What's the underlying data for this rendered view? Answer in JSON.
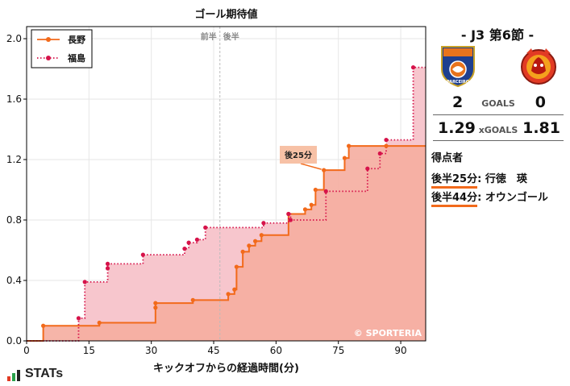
{
  "chart_data": {
    "type": "line",
    "step": true,
    "title": "ゴール期待値",
    "xlabel": "キックオフからの経過時間(分)",
    "ylabel": "",
    "xlim": [
      0,
      96
    ],
    "ylim": [
      0,
      2.08
    ],
    "x_ticks": [
      0,
      15,
      30,
      45,
      60,
      75,
      90
    ],
    "y_ticks": [
      0.0,
      0.4,
      0.8,
      1.2,
      1.6,
      2.0
    ],
    "y_tick_labels": [
      "0.0",
      "0.4",
      "0.8",
      "1.2",
      "1.6",
      "2.0"
    ],
    "grid": true,
    "legend": "top-left",
    "halftime_line": 46.5,
    "half_labels": [
      "前半",
      "後半"
    ],
    "watermark": "© SPORTERIA",
    "annotation": {
      "text": "後25分",
      "x": 71.5,
      "y": 1.13
    },
    "series": [
      {
        "name": "長野",
        "color": "#f26a1b",
        "fill": "#f5ada0",
        "linestyle": "solid",
        "marker": "circle",
        "x": [
          4,
          17.5,
          31,
          31,
          40,
          48.5,
          50,
          50.5,
          52,
          53.5,
          55,
          56.5,
          63,
          67,
          68.5,
          69.5,
          71.5,
          76.5,
          77.5,
          86.5
        ],
        "y": [
          0.1,
          0.12,
          0.22,
          0.25,
          0.27,
          0.31,
          0.34,
          0.49,
          0.59,
          0.63,
          0.66,
          0.7,
          0.84,
          0.87,
          0.9,
          1.0,
          1.13,
          1.21,
          1.29,
          1.29
        ]
      },
      {
        "name": "福島",
        "color": "#d6134a",
        "fill": "#f7c6cd",
        "linestyle": "dotted",
        "marker": "circle",
        "x": [
          12.5,
          14,
          19.5,
          19.5,
          28,
          38,
          39,
          41,
          43,
          57,
          63,
          63.5,
          72,
          82,
          85,
          86.5,
          93
        ],
        "y": [
          0.15,
          0.39,
          0.48,
          0.51,
          0.57,
          0.61,
          0.65,
          0.67,
          0.75,
          0.78,
          0.84,
          0.8,
          0.99,
          1.14,
          1.24,
          1.33,
          1.81
        ]
      }
    ]
  },
  "match": {
    "title": "- J3 第6節 -",
    "home_logo": "parceiro-crest-icon",
    "away_logo": "fukushima-united-crest-icon",
    "home_logo_text": "PARCEIRO",
    "home_goals": "2",
    "away_goals": "0",
    "goals_label": "GOALS",
    "home_xg": "1.29",
    "away_xg": "1.81",
    "xg_label": "xGOALS",
    "scorers_label": "得点者",
    "scorers": [
      {
        "time": "後半25分",
        "player": ": 行徳　瑛"
      },
      {
        "time": "後半44分",
        "player": ": オウンゴール"
      }
    ]
  },
  "branding": {
    "logo_text": "STATs"
  }
}
